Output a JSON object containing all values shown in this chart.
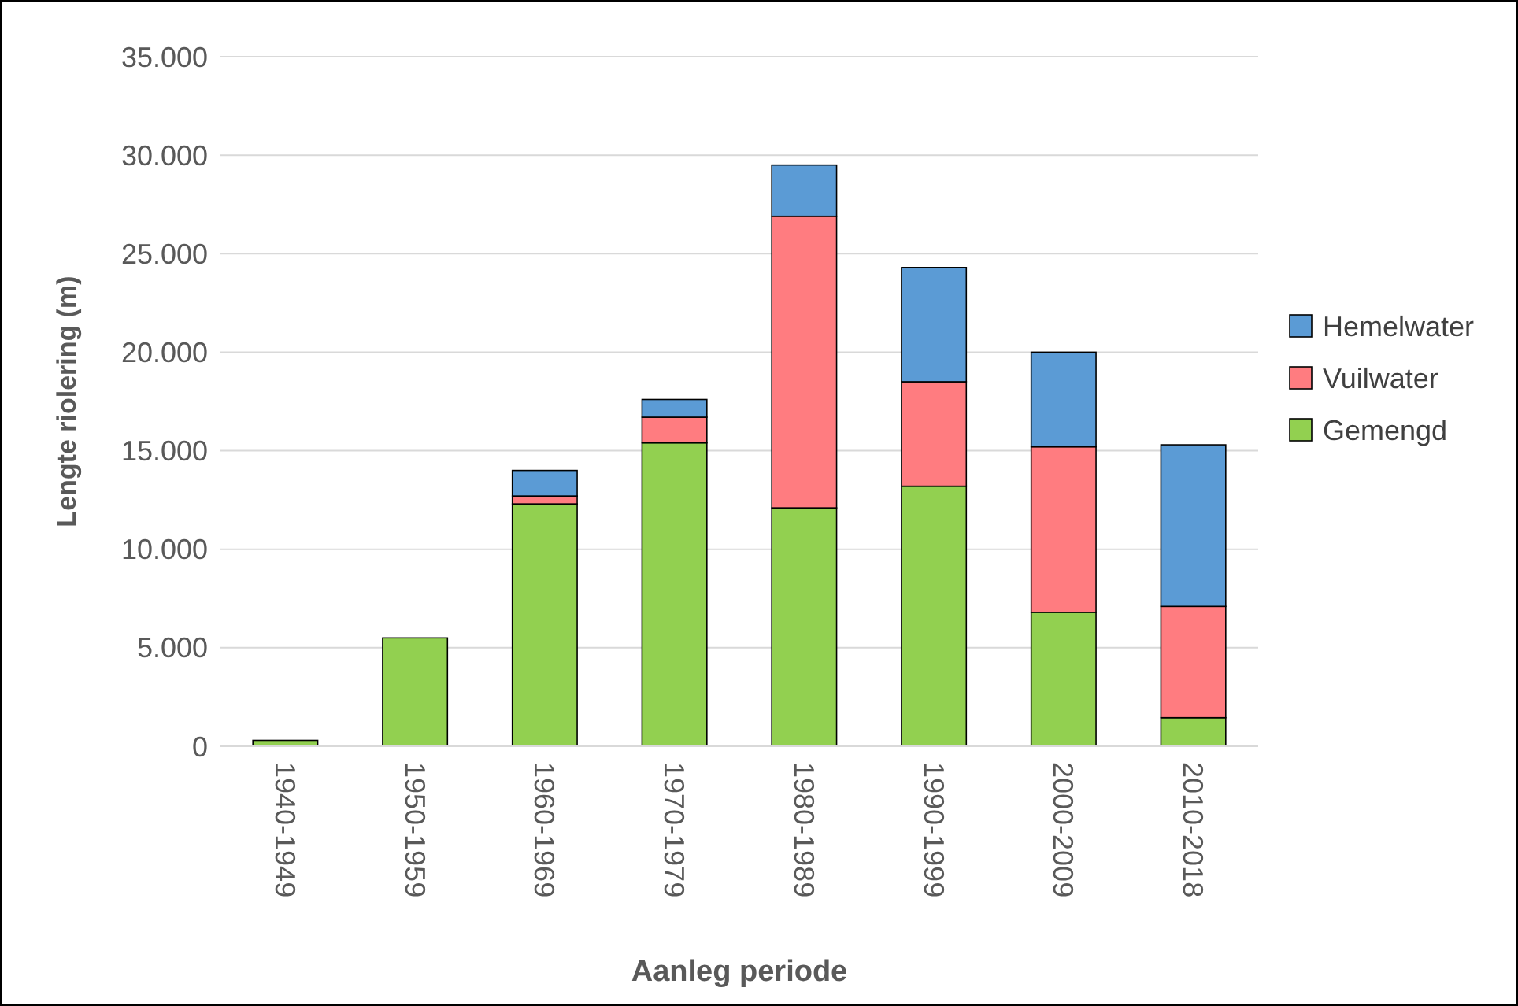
{
  "chart_data": {
    "type": "bar",
    "stacked": true,
    "xlabel": "Aanleg periode",
    "ylabel": "Lengte riolering (m)",
    "categories": [
      "1940-1949",
      "1950-1959",
      "1960-1969",
      "1970-1979",
      "1980-1989",
      "1990-1999",
      "2000-2009",
      "2010-2018"
    ],
    "series": [
      {
        "name": "Gemengd",
        "color": "#92d050",
        "values": [
          300,
          5500,
          12300,
          15400,
          12100,
          13200,
          6800,
          1450
        ]
      },
      {
        "name": "Vuilwater",
        "color": "#ff7c80",
        "values": [
          0,
          0,
          400,
          1300,
          14800,
          5300,
          8400,
          5650
        ]
      },
      {
        "name": "Hemelwater",
        "color": "#5b9bd5",
        "values": [
          0,
          0,
          1300,
          900,
          2600,
          5800,
          4800,
          8200
        ]
      }
    ],
    "ylim": [
      0,
      35000
    ],
    "yticks": [
      0,
      {
        "value": 5000,
        "label": "5.000"
      },
      {
        "value": 10000,
        "label": "10.000"
      },
      {
        "value": 15000,
        "label": "15.000"
      },
      {
        "value": 20000,
        "label": "20.000"
      },
      {
        "value": 25000,
        "label": "25.000"
      },
      {
        "value": 30000,
        "label": "30.000"
      },
      {
        "value": 35000,
        "label": "35.000"
      }
    ],
    "grid": "y",
    "legend": "right"
  }
}
